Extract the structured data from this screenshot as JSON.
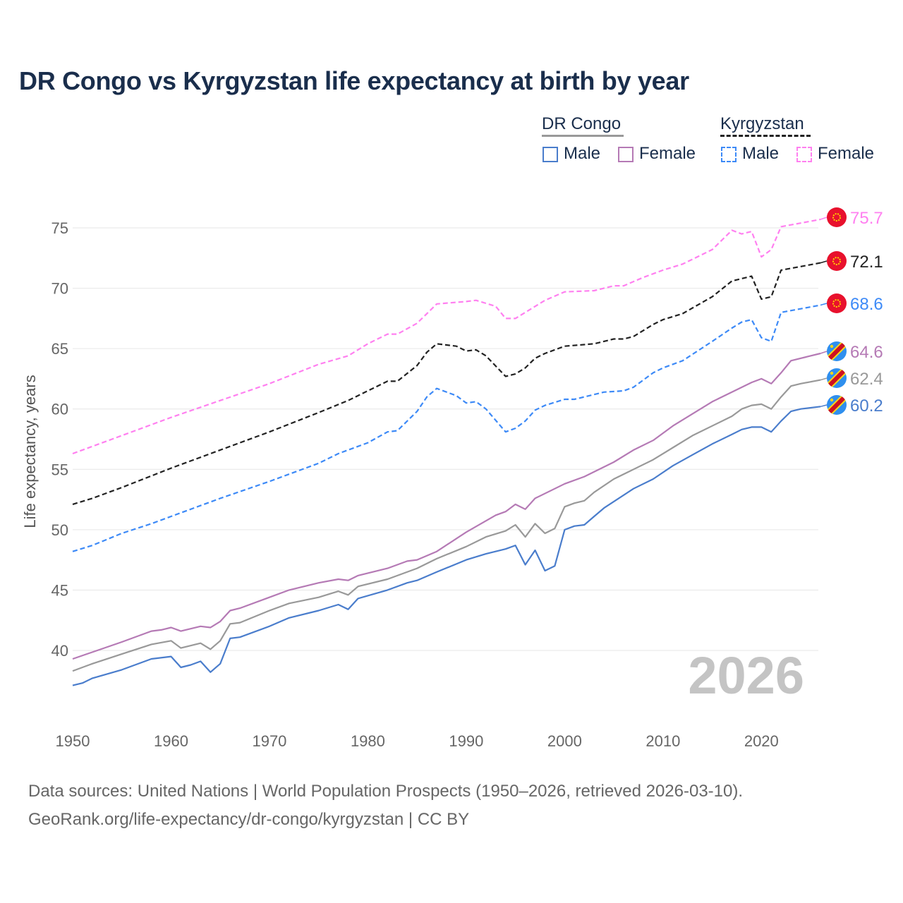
{
  "title": "DR Congo vs Kyrgyzstan life expectancy at birth by year",
  "legend": {
    "groups": [
      {
        "name": "DR Congo",
        "items": [
          "Male",
          "Female"
        ]
      },
      {
        "name": "Kyrgyzstan",
        "items": [
          "Male",
          "Female"
        ]
      }
    ]
  },
  "year_watermark": "2026",
  "sources": {
    "line1": "Data sources: United Nations | World Population Prospects (1950–2026, retrieved 2026-03-10).",
    "line2": "GeoRank.org/life-expectancy/dr-congo/kyrgyzstan | CC BY"
  },
  "chart_data": {
    "type": "line",
    "title": "DR Congo vs Kyrgyzstan life expectancy at birth by year",
    "xlabel": "",
    "ylabel": "Life expectancy, years",
    "xlim": [
      1950,
      2026
    ],
    "ylim": [
      36,
      77
    ],
    "xticks": [
      1950,
      1960,
      1970,
      1980,
      1990,
      2000,
      2010,
      2020
    ],
    "yticks": [
      40,
      45,
      50,
      55,
      60,
      65,
      70,
      75
    ],
    "grid": true,
    "legend_position": "top-right",
    "series": [
      {
        "name": "Kyrgyzstan Female",
        "color": "#ff80f0",
        "dash": true,
        "end_label": "75.7",
        "x": [
          1950,
          1955,
          1960,
          1965,
          1970,
          1975,
          1978,
          1980,
          1982,
          1983,
          1985,
          1987,
          1990,
          1991,
          1993,
          1994,
          1995,
          1998,
          2000,
          2003,
          2005,
          2006,
          2008,
          2010,
          2012,
          2015,
          2017,
          2018,
          2019,
          2020,
          2021,
          2022,
          2024,
          2026
        ],
        "y": [
          56.3,
          57.8,
          59.3,
          60.7,
          62.1,
          63.7,
          64.4,
          65.4,
          66.2,
          66.2,
          67.1,
          68.7,
          68.9,
          69.0,
          68.5,
          67.5,
          67.5,
          69.0,
          69.7,
          69.8,
          70.2,
          70.2,
          70.9,
          71.5,
          72.0,
          73.2,
          74.8,
          74.5,
          74.7,
          72.6,
          73.2,
          75.1,
          75.4,
          75.7
        ]
      },
      {
        "name": "Kyrgyzstan",
        "color": "#222222",
        "dash": true,
        "end_label": "72.1",
        "x": [
          1950,
          1952,
          1955,
          1960,
          1965,
          1970,
          1975,
          1978,
          1980,
          1982,
          1983,
          1985,
          1986,
          1987,
          1989,
          1990,
          1991,
          1992,
          1994,
          1995,
          1996,
          1997,
          1998,
          2000,
          2003,
          2005,
          2006,
          2007,
          2009,
          2010,
          2012,
          2015,
          2017,
          2019,
          2020,
          2021,
          2022,
          2024,
          2026
        ],
        "y": [
          52.1,
          52.6,
          53.5,
          55.1,
          56.6,
          58.1,
          59.7,
          60.7,
          61.5,
          62.3,
          62.3,
          63.6,
          64.7,
          65.4,
          65.2,
          64.8,
          64.9,
          64.4,
          62.7,
          62.9,
          63.4,
          64.2,
          64.6,
          65.2,
          65.4,
          65.8,
          65.8,
          66.0,
          67.0,
          67.4,
          67.9,
          69.3,
          70.6,
          71.0,
          69.1,
          69.3,
          71.5,
          71.8,
          72.1
        ]
      },
      {
        "name": "Kyrgyzstan Male",
        "color": "#3d8af7",
        "dash": true,
        "end_label": "68.6",
        "x": [
          1950,
          1952,
          1955,
          1958,
          1960,
          1965,
          1970,
          1975,
          1977,
          1980,
          1982,
          1983,
          1985,
          1986,
          1987,
          1989,
          1990,
          1991,
          1992,
          1994,
          1995,
          1996,
          1997,
          1998,
          2000,
          2001,
          2003,
          2004,
          2006,
          2007,
          2009,
          2010,
          2012,
          2015,
          2017,
          2018,
          2019,
          2020,
          2021,
          2022,
          2024,
          2026
        ],
        "y": [
          48.2,
          48.7,
          49.7,
          50.5,
          51.1,
          52.6,
          54.0,
          55.5,
          56.3,
          57.2,
          58.1,
          58.2,
          59.8,
          61.0,
          61.7,
          61.1,
          60.5,
          60.6,
          60.0,
          58.1,
          58.4,
          59.0,
          59.9,
          60.3,
          60.8,
          60.8,
          61.2,
          61.4,
          61.5,
          61.8,
          63.0,
          63.4,
          64.0,
          65.6,
          66.7,
          67.2,
          67.4,
          65.9,
          65.6,
          68.0,
          68.3,
          68.6
        ]
      },
      {
        "name": "DR Congo Female",
        "color": "#b57ab5",
        "dash": false,
        "end_label": "64.6",
        "x": [
          1950,
          1955,
          1958,
          1959,
          1960,
          1961,
          1963,
          1964,
          1965,
          1966,
          1967,
          1970,
          1972,
          1975,
          1977,
          1978,
          1979,
          1982,
          1984,
          1985,
          1987,
          1990,
          1993,
          1994,
          1995,
          1996,
          1997,
          2000,
          2002,
          2005,
          2007,
          2009,
          2011,
          2013,
          2015,
          2017,
          2019,
          2020,
          2021,
          2022,
          2023,
          2026
        ],
        "y": [
          39.3,
          40.7,
          41.6,
          41.7,
          41.9,
          41.6,
          42.0,
          41.9,
          42.4,
          43.3,
          43.5,
          44.4,
          45.0,
          45.6,
          45.9,
          45.8,
          46.2,
          46.8,
          47.4,
          47.5,
          48.2,
          49.8,
          51.2,
          51.5,
          52.1,
          51.7,
          52.6,
          53.8,
          54.4,
          55.6,
          56.6,
          57.4,
          58.6,
          59.6,
          60.6,
          61.4,
          62.2,
          62.5,
          62.1,
          63.0,
          64.0,
          64.6
        ]
      },
      {
        "name": "DR Congo",
        "color": "#999999",
        "dash": false,
        "end_label": "62.4",
        "x": [
          1950,
          1952,
          1955,
          1958,
          1960,
          1961,
          1963,
          1964,
          1965,
          1966,
          1967,
          1970,
          1972,
          1975,
          1977,
          1978,
          1979,
          1982,
          1985,
          1987,
          1990,
          1992,
          1994,
          1995,
          1996,
          1997,
          1998,
          1999,
          2000,
          2001,
          2002,
          2003,
          2005,
          2007,
          2009,
          2011,
          2013,
          2015,
          2017,
          2018,
          2019,
          2020,
          2021,
          2022,
          2023,
          2024,
          2026
        ],
        "y": [
          38.3,
          38.9,
          39.7,
          40.5,
          40.8,
          40.2,
          40.6,
          40.1,
          40.8,
          42.2,
          42.3,
          43.3,
          43.9,
          44.4,
          44.9,
          44.6,
          45.3,
          45.9,
          46.8,
          47.6,
          48.6,
          49.4,
          49.9,
          50.4,
          49.4,
          50.5,
          49.7,
          50.1,
          51.9,
          52.2,
          52.4,
          53.1,
          54.2,
          55.0,
          55.8,
          56.8,
          57.8,
          58.6,
          59.4,
          60.0,
          60.3,
          60.4,
          60.0,
          61.0,
          61.9,
          62.1,
          62.4
        ]
      },
      {
        "name": "DR Congo Male",
        "color": "#4a7dcc",
        "dash": false,
        "end_label": "60.2",
        "x": [
          1950,
          1951,
          1952,
          1955,
          1958,
          1960,
          1961,
          1962,
          1963,
          1964,
          1965,
          1966,
          1967,
          1970,
          1972,
          1975,
          1977,
          1978,
          1979,
          1982,
          1984,
          1985,
          1987,
          1990,
          1992,
          1994,
          1995,
          1996,
          1997,
          1998,
          1999,
          2000,
          2001,
          2002,
          2003,
          2004,
          2007,
          2009,
          2011,
          2013,
          2015,
          2017,
          2018,
          2019,
          2020,
          2021,
          2022,
          2023,
          2024,
          2026
        ],
        "y": [
          37.1,
          37.3,
          37.7,
          38.4,
          39.3,
          39.5,
          38.6,
          38.8,
          39.1,
          38.2,
          38.9,
          41.0,
          41.1,
          42.0,
          42.7,
          43.3,
          43.8,
          43.4,
          44.3,
          45.0,
          45.6,
          45.8,
          46.5,
          47.5,
          48.0,
          48.4,
          48.7,
          47.1,
          48.3,
          46.6,
          47.0,
          50.0,
          50.3,
          50.4,
          51.1,
          51.8,
          53.4,
          54.2,
          55.3,
          56.2,
          57.1,
          57.9,
          58.3,
          58.5,
          58.5,
          58.1,
          59.0,
          59.8,
          60.0,
          60.2
        ]
      }
    ],
    "end_label_flags": [
      "kyrgyzstan",
      "kyrgyzstan",
      "kyrgyzstan",
      "dr-congo",
      "dr-congo",
      "dr-congo"
    ]
  }
}
